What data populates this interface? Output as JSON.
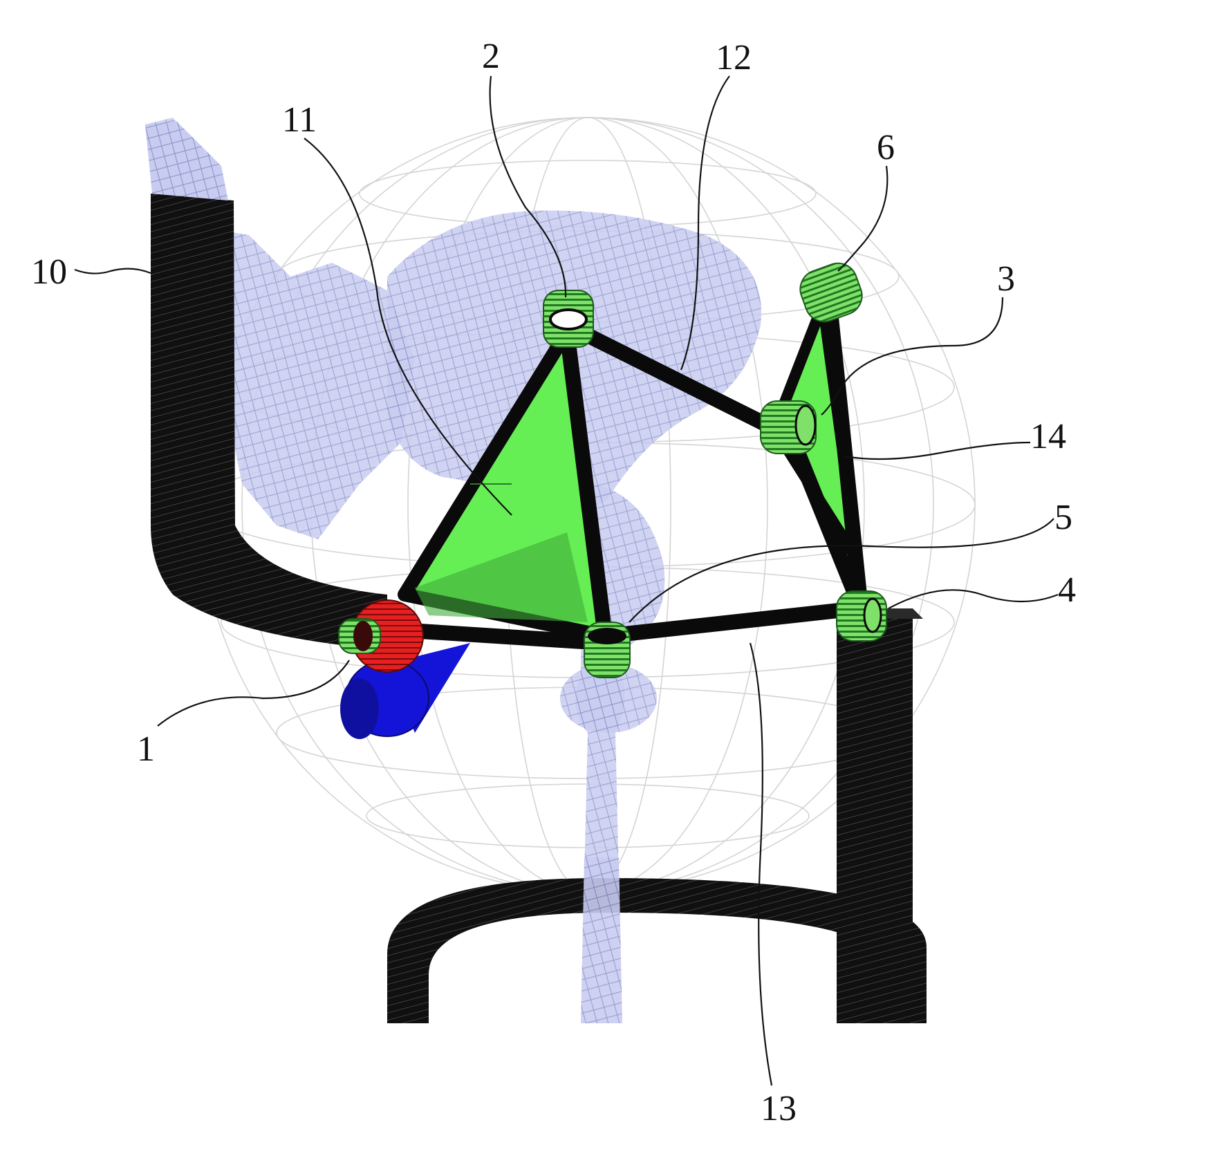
{
  "figure": {
    "callouts": [
      {
        "id": "1",
        "text": "1"
      },
      {
        "id": "2",
        "text": "2"
      },
      {
        "id": "3",
        "text": "3"
      },
      {
        "id": "4",
        "text": "4"
      },
      {
        "id": "5",
        "text": "5"
      },
      {
        "id": "6",
        "text": "6"
      },
      {
        "id": "10",
        "text": "10"
      },
      {
        "id": "11",
        "text": "11"
      },
      {
        "id": "12",
        "text": "12"
      },
      {
        "id": "13",
        "text": "13"
      },
      {
        "id": "14",
        "text": "14"
      }
    ],
    "colors": {
      "rod": "#0a0a0a",
      "joint": "#7fe06a",
      "joint_stripe": "#1f7a1f",
      "plate": "#66ee55",
      "plate_shadow": "#3fae3a",
      "bone": "#c8ccf0",
      "bone_wire": "#8a90c8",
      "sphere_wire": "#d4d4d4",
      "red_part": "#e62020",
      "blue_part": "#1414d8"
    }
  }
}
